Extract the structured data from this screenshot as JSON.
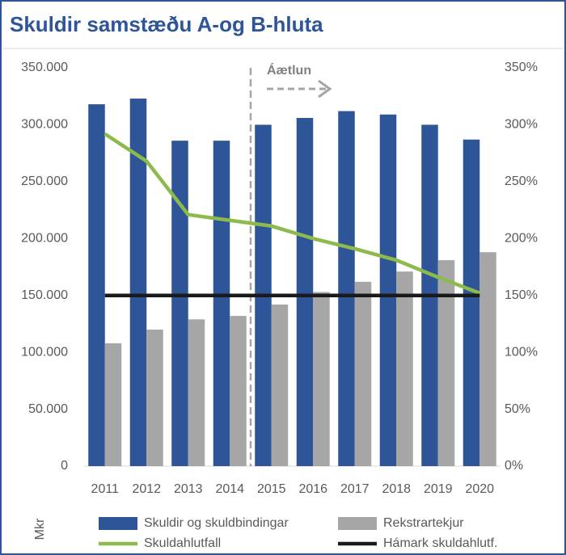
{
  "chart_data": {
    "type": "bar_line",
    "title": "Skuldir samstæðu A-og B-hluta",
    "annotation": "Áætlun",
    "y_label": "Mkr",
    "categories": [
      "2011",
      "2012",
      "2013",
      "2014",
      "2015",
      "2016",
      "2017",
      "2018",
      "2019",
      "2020"
    ],
    "series": [
      {
        "name": "Skuldir og skuldbindingar",
        "kind": "bar",
        "color": "#2e5597",
        "values": [
          318000,
          323000,
          286000,
          286000,
          300000,
          306000,
          312000,
          309000,
          300000,
          287000
        ]
      },
      {
        "name": "Rekstrartekjur",
        "kind": "bar",
        "color": "#a6a6a6",
        "values": [
          108000,
          120000,
          129000,
          132000,
          142000,
          153000,
          162000,
          171000,
          181000,
          188000
        ]
      },
      {
        "name": "Skuldahlutfall",
        "kind": "line",
        "axis": "y2",
        "color": "#8dba4c",
        "values": [
          292,
          268,
          221,
          216,
          211,
          200,
          191,
          181,
          166,
          152
        ]
      },
      {
        "name": "Hámark skuldahlutf.",
        "kind": "line",
        "axis": "y2",
        "color": "#1a1a1a",
        "values": [
          150,
          150,
          150,
          150,
          150,
          150,
          150,
          150,
          150,
          150
        ]
      }
    ],
    "ylim": [
      0,
      350000
    ],
    "yticks": [
      0,
      {
        "value": 50000,
        "label": "50.000"
      },
      {
        "value": 100000,
        "label": "100.000"
      },
      {
        "value": 150000,
        "label": "150.000"
      },
      {
        "value": 200000,
        "label": "200.000"
      },
      {
        "value": 250000,
        "label": "250.000"
      },
      {
        "value": 300000,
        "label": "300.000"
      },
      {
        "value": 350000,
        "label": "350.000"
      }
    ],
    "y2lim": [
      0,
      350
    ],
    "y2ticks": [
      {
        "value": 0,
        "label": "0%"
      },
      {
        "value": 50,
        "label": "50%"
      },
      {
        "value": 100,
        "label": "100%"
      },
      {
        "value": 150,
        "label": "150%"
      },
      {
        "value": 200,
        "label": "200%"
      },
      {
        "value": 250,
        "label": "250%"
      },
      {
        "value": 300,
        "label": "300%"
      },
      {
        "value": 350,
        "label": "350%"
      }
    ]
  }
}
